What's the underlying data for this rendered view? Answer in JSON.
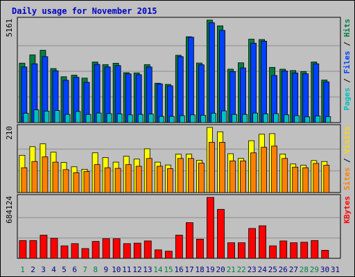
{
  "title": "Daily usage for November 2015",
  "chart_data": {
    "type": "bar",
    "title": "Daily usage for November 2015",
    "x": [
      "1",
      "2",
      "3",
      "4",
      "5",
      "6",
      "7",
      "8",
      "9",
      "10",
      "11",
      "12",
      "13",
      "14",
      "15",
      "16",
      "17",
      "18",
      "19",
      "20",
      "21",
      "22",
      "23",
      "24",
      "25",
      "26",
      "27",
      "28",
      "29",
      "30",
      "31"
    ],
    "weekend_days": [
      "1",
      "7",
      "8",
      "14",
      "15",
      "21",
      "22",
      "28",
      "29"
    ],
    "panels": [
      {
        "id": "top",
        "ymax_label": "5161",
        "ylim": [
          0,
          5161
        ],
        "legend": [
          {
            "text": "Pages",
            "color": "#00c0c0"
          },
          {
            "text": " / ",
            "color": "#000000"
          },
          {
            "text": "Files",
            "color": "#0040ff"
          },
          {
            "text": " / ",
            "color": "#000000"
          },
          {
            "text": "Hits",
            "color": "#008040"
          }
        ],
        "series": [
          {
            "name": "Hits",
            "color": "#008040",
            "values": [
              2991,
              3410,
              3640,
              2720,
              2310,
              2390,
              2240,
              3050,
              2920,
              2990,
              2510,
              2500,
              2920,
              1980,
              1920,
              3390,
              4320,
              3000,
              5161,
              4870,
              2690,
              3010,
              4200,
              4180,
              2780,
              2690,
              2620,
              2570,
              3050,
              2140,
              0
            ]
          },
          {
            "name": "Files",
            "color": "#0040ff",
            "values": [
              2800,
              2960,
              3320,
              2610,
              2130,
              2280,
              2030,
              2930,
              2800,
              2870,
              2450,
              2410,
              2800,
              1950,
              1850,
              3320,
              4300,
              2910,
              5030,
              4640,
              2570,
              2750,
              4000,
              4100,
              2370,
              2600,
              2500,
              2460,
              2960,
              2050,
              0
            ]
          },
          {
            "name": "Pages",
            "color": "#00c0c0",
            "values": [
              470,
              640,
              580,
              610,
              410,
              560,
              410,
              480,
              450,
              440,
              390,
              410,
              430,
              310,
              310,
              350,
              390,
              370,
              470,
              590,
              410,
              410,
              480,
              440,
              450,
              390,
              350,
              290,
              330,
              300,
              0
            ]
          }
        ]
      },
      {
        "id": "middle",
        "ymax_label": "210",
        "ylim": [
          0,
          210
        ],
        "legend": [
          {
            "text": "Sites",
            "color": "#ff8000"
          },
          {
            "text": " / ",
            "color": "#000000"
          },
          {
            "text": "Visits",
            "color": "#ffd700"
          }
        ],
        "series": [
          {
            "name": "Visits",
            "color": "#ffff00",
            "values": [
              120,
              148,
              157,
              130,
              97,
              83,
              75,
              128,
              113,
              98,
              117,
              108,
              141,
              98,
              89,
              124,
              124,
              104,
              210,
              196,
              125,
              110,
              167,
              188,
              190,
              124,
              92,
              88,
              103,
              100,
              0
            ]
          },
          {
            "name": "Sites",
            "color": "#ff8000",
            "values": [
              80,
              100,
              115,
              98,
              74,
              64,
              68,
              90,
              80,
              78,
              90,
              85,
              110,
              85,
              77,
              110,
              110,
              95,
              162,
              162,
              102,
              102,
              128,
              146,
              150,
              110,
              82,
              80,
              94,
              88,
              0
            ]
          }
        ]
      },
      {
        "id": "bottom",
        "ymax_label": "684124",
        "ylim": [
          0,
          684124
        ],
        "legend": [
          {
            "text": "KBytes",
            "color": "#ff0000"
          }
        ],
        "series": [
          {
            "name": "KBytes",
            "color": "#ff0000",
            "values": [
              200000,
              200000,
              260000,
              225000,
              140000,
              165000,
              110000,
              190000,
              220000,
              220000,
              165000,
              170000,
              195000,
              95000,
              80000,
              260000,
              400000,
              215000,
              684124,
              550000,
              175000,
              175000,
              335000,
              365000,
              140000,
              195000,
              175000,
              180000,
              200000,
              90000,
              0
            ]
          }
        ]
      }
    ]
  }
}
